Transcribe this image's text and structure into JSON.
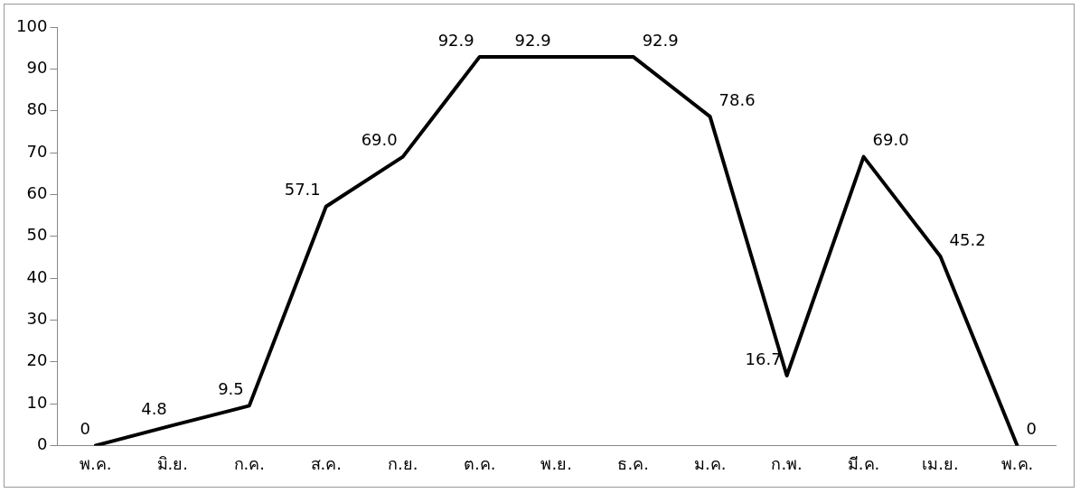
{
  "chart_data": {
    "type": "line",
    "categories": [
      "พ.ค.",
      "มิ.ย.",
      "ก.ค.",
      "ส.ค.",
      "ก.ย.",
      "ต.ค.",
      "พ.ย.",
      "ธ.ค.",
      "ม.ค.",
      "ก.พ.",
      "มี.ค.",
      "เม.ย.",
      "พ.ค."
    ],
    "series": [
      {
        "color": "#000000",
        "values": [
          0,
          4.8,
          9.5,
          57.1,
          69.0,
          92.9,
          92.9,
          92.9,
          78.6,
          16.7,
          69.0,
          45.2,
          0
        ],
        "value_labels": [
          "0",
          "4.8",
          "9.5",
          "57.1",
          "69.0",
          "92.9",
          "92.9",
          "92.9",
          "78.6",
          "16.7",
          "69.0",
          "45.2",
          "0"
        ]
      }
    ],
    "ylim": [
      0,
      100
    ],
    "yticks": [
      0,
      10,
      20,
      30,
      40,
      50,
      60,
      70,
      80,
      90,
      100
    ],
    "grid": false,
    "legend": false,
    "marker": "none",
    "line_style": "solid"
  }
}
